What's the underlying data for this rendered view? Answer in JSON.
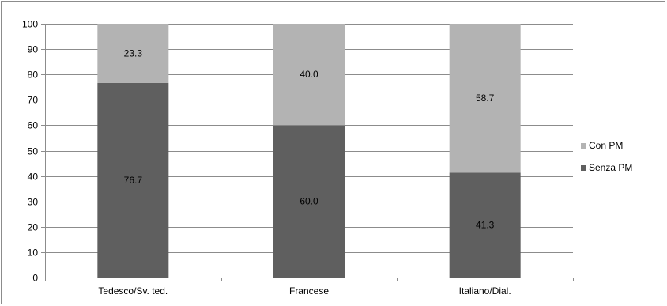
{
  "chart_data": {
    "type": "bar",
    "stacked": true,
    "categories": [
      "Tedesco/Sv. ted.",
      "Francese",
      "Italiano/Dial."
    ],
    "series": [
      {
        "name": "Senza PM",
        "values": [
          76.7,
          60.0,
          41.3
        ],
        "color": "#5f5f5f"
      },
      {
        "name": "Con PM",
        "values": [
          23.3,
          40.0,
          58.7
        ],
        "color": "#b3b3b3"
      }
    ],
    "data_labels": [
      [
        "76.7",
        "60.0",
        "41.3"
      ],
      [
        "23.3",
        "40.0",
        "58.7"
      ]
    ],
    "ylim": [
      0,
      100
    ],
    "yticks": [
      0,
      10,
      20,
      30,
      40,
      50,
      60,
      70,
      80,
      90,
      100
    ],
    "title": "",
    "xlabel": "",
    "ylabel": "",
    "grid": true,
    "legend_position": "right",
    "legend_order": [
      "Con PM",
      "Senza PM"
    ]
  }
}
